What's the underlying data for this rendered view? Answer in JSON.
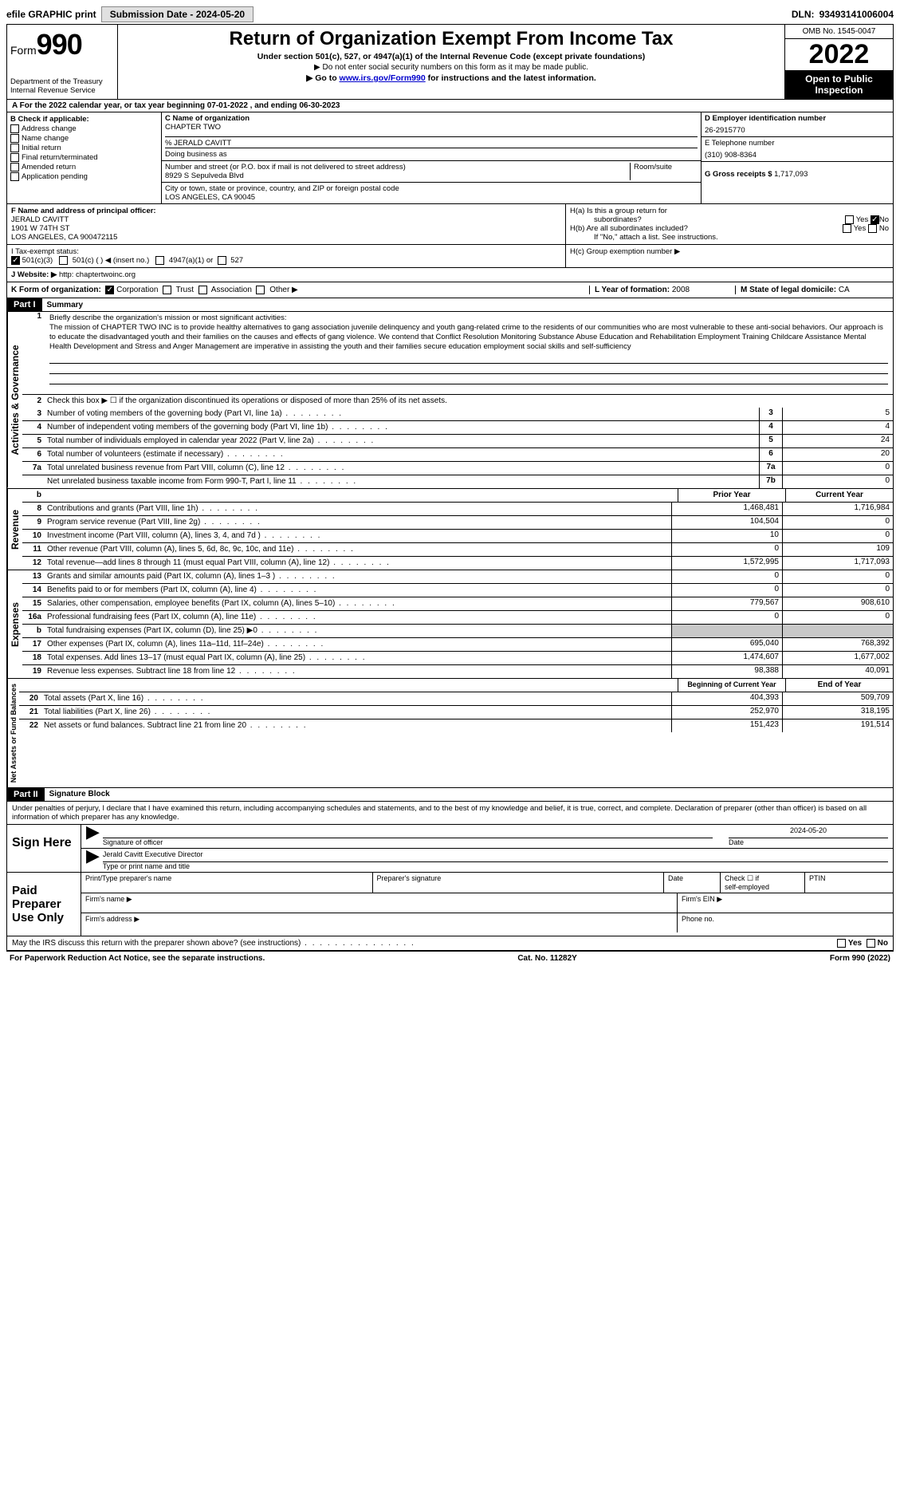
{
  "topbar": {
    "efile": "efile GRAPHIC print",
    "submission_btn": "Submission Date - 2024-05-20",
    "dln_label": "DLN:",
    "dln": "93493141006004"
  },
  "header": {
    "form_prefix": "Form",
    "form_num": "990",
    "dept": "Department of the Treasury",
    "irs": "Internal Revenue Service",
    "title": "Return of Organization Exempt From Income Tax",
    "sub1": "Under section 501(c), 527, or 4947(a)(1) of the Internal Revenue Code (except private foundations)",
    "sub2": "▶ Do not enter social security numbers on this form as it may be made public.",
    "sub3_pre": "▶ Go to ",
    "sub3_link": "www.irs.gov/Form990",
    "sub3_post": " for instructions and the latest information.",
    "omb": "OMB No. 1545-0047",
    "year": "2022",
    "open": "Open to Public Inspection"
  },
  "rowA": "A For the 2022 calendar year, or tax year beginning 07-01-2022   , and ending 06-30-2023",
  "colB": {
    "hdr": "B Check if applicable:",
    "opts": [
      "Address change",
      "Name change",
      "Initial return",
      "Final return/terminated",
      "Amended return",
      "Application pending"
    ]
  },
  "colC": {
    "name_lbl": "C Name of organization",
    "name": "CHAPTER TWO",
    "care_lbl": "% JERALD CAVITT",
    "dba_lbl": "Doing business as",
    "street_lbl": "Number and street (or P.O. box if mail is not delivered to street address)",
    "street": "8929 S Sepulveda Blvd",
    "room_lbl": "Room/suite",
    "city_lbl": "City or town, state or province, country, and ZIP or foreign postal code",
    "city": "LOS ANGELES, CA  90045"
  },
  "colD": {
    "ein_lbl": "D Employer identification number",
    "ein": "26-2915770",
    "phone_lbl": "E Telephone number",
    "phone": "(310) 908-8364",
    "gross_lbl": "G Gross receipts $",
    "gross": "1,717,093"
  },
  "rowF": {
    "lbl": "F  Name and address of principal officer:",
    "name": "JERALD CAVITT",
    "addr1": "1901 W 74TH ST",
    "addr2": "LOS ANGELES, CA  900472115"
  },
  "rowH": {
    "ha": "H(a)  Is this a group return for",
    "ha2": "subordinates?",
    "hb": "H(b)  Are all subordinates included?",
    "hb2": "If \"No,\" attach a list. See instructions.",
    "hc": "H(c)  Group exemption number ▶",
    "yes": "Yes",
    "no": "No"
  },
  "rowI": {
    "lbl": "I    Tax-exempt status:",
    "o1": "501(c)(3)",
    "o2": "501(c) (  ) ◀ (insert no.)",
    "o3": "4947(a)(1) or",
    "o4": "527"
  },
  "rowJ": {
    "lbl": "J   Website: ▶",
    "val": "http: chaptertwoinc.org"
  },
  "rowK": {
    "lbl": "K Form of organization:",
    "o1": "Corporation",
    "o2": "Trust",
    "o3": "Association",
    "o4": "Other ▶",
    "l_lbl": "L Year of formation:",
    "l_val": "2008",
    "m_lbl": "M State of legal domicile:",
    "m_val": "CA"
  },
  "part1": {
    "hdr": "Part I",
    "title": "Summary"
  },
  "section_labels": {
    "ag": "Activities & Governance",
    "rev": "Revenue",
    "exp": "Expenses",
    "nab": "Net Assets or Fund Balances"
  },
  "mission_lbl": "Briefly describe the organization's mission or most significant activities:",
  "mission": "The mission of CHAPTER TWO INC is to provide healthy alternatives to gang association juvenile delinquency and youth gang-related crime to the residents of our communities who are most vulnerable to these anti-social behaviors. Our approach is to educate the disadvantaged youth and their families on the causes and effects of gang violence. We contend that Conflict Resolution Monitoring Substance Abuse Education and Rehabilitation Employment Training Childcare Assistance Mental Health Development and Stress and Anger Management are imperative in assisting the youth and their families secure education employment social skills and self-sufficiency",
  "line2": "Check this box ▶ ☐  if the organization discontinued its operations or disposed of more than 25% of its net assets.",
  "lines_ag": [
    {
      "n": "3",
      "t": "Number of voting members of the governing body (Part VI, line 1a)",
      "box": "3",
      "v": "5"
    },
    {
      "n": "4",
      "t": "Number of independent voting members of the governing body (Part VI, line 1b)",
      "box": "4",
      "v": "4"
    },
    {
      "n": "5",
      "t": "Total number of individuals employed in calendar year 2022 (Part V, line 2a)",
      "box": "5",
      "v": "24"
    },
    {
      "n": "6",
      "t": "Total number of volunteers (estimate if necessary)",
      "box": "6",
      "v": "20"
    },
    {
      "n": "7a",
      "t": "Total unrelated business revenue from Part VIII, column (C), line 12",
      "box": "7a",
      "v": "0"
    },
    {
      "n": "",
      "t": "Net unrelated business taxable income from Form 990-T, Part I, line 11",
      "box": "7b",
      "v": "0"
    }
  ],
  "col_hdrs": {
    "b": "b",
    "prior": "Prior Year",
    "current": "Current Year"
  },
  "lines_rev": [
    {
      "n": "8",
      "t": "Contributions and grants (Part VIII, line 1h)",
      "p": "1,468,481",
      "c": "1,716,984"
    },
    {
      "n": "9",
      "t": "Program service revenue (Part VIII, line 2g)",
      "p": "104,504",
      "c": "0"
    },
    {
      "n": "10",
      "t": "Investment income (Part VIII, column (A), lines 3, 4, and 7d )",
      "p": "10",
      "c": "0"
    },
    {
      "n": "11",
      "t": "Other revenue (Part VIII, column (A), lines 5, 6d, 8c, 9c, 10c, and 11e)",
      "p": "0",
      "c": "109"
    },
    {
      "n": "12",
      "t": "Total revenue—add lines 8 through 11 (must equal Part VIII, column (A), line 12)",
      "p": "1,572,995",
      "c": "1,717,093"
    }
  ],
  "lines_exp": [
    {
      "n": "13",
      "t": "Grants and similar amounts paid (Part IX, column (A), lines 1–3 )",
      "p": "0",
      "c": "0"
    },
    {
      "n": "14",
      "t": "Benefits paid to or for members (Part IX, column (A), line 4)",
      "p": "0",
      "c": "0"
    },
    {
      "n": "15",
      "t": "Salaries, other compensation, employee benefits (Part IX, column (A), lines 5–10)",
      "p": "779,567",
      "c": "908,610"
    },
    {
      "n": "16a",
      "t": "Professional fundraising fees (Part IX, column (A), line 11e)",
      "p": "0",
      "c": "0"
    },
    {
      "n": "b",
      "t": "Total fundraising expenses (Part IX, column (D), line 25) ▶0",
      "p": "",
      "c": "",
      "shade": true
    },
    {
      "n": "17",
      "t": "Other expenses (Part IX, column (A), lines 11a–11d, 11f–24e)",
      "p": "695,040",
      "c": "768,392"
    },
    {
      "n": "18",
      "t": "Total expenses. Add lines 13–17 (must equal Part IX, column (A), line 25)",
      "p": "1,474,607",
      "c": "1,677,002"
    },
    {
      "n": "19",
      "t": "Revenue less expenses. Subtract line 18 from line 12",
      "p": "98,388",
      "c": "40,091"
    }
  ],
  "col_hdrs2": {
    "begin": "Beginning of Current Year",
    "end": "End of Year"
  },
  "lines_nab": [
    {
      "n": "20",
      "t": "Total assets (Part X, line 16)",
      "p": "404,393",
      "c": "509,709"
    },
    {
      "n": "21",
      "t": "Total liabilities (Part X, line 26)",
      "p": "252,970",
      "c": "318,195"
    },
    {
      "n": "22",
      "t": "Net assets or fund balances. Subtract line 21 from line 20",
      "p": "151,423",
      "c": "191,514"
    }
  ],
  "part2": {
    "hdr": "Part II",
    "title": "Signature Block"
  },
  "perjury": "Under penalties of perjury, I declare that I have examined this return, including accompanying schedules and statements, and to the best of my knowledge and belief, it is true, correct, and complete. Declaration of preparer (other than officer) is based on all information of which preparer has any knowledge.",
  "sign": {
    "here": "Sign Here",
    "sig_lbl": "Signature of officer",
    "date_lbl": "Date",
    "date": "2024-05-20",
    "name": "Jerald Cavitt Executive Director",
    "name_lbl": "Type or print name and title"
  },
  "paid": {
    "lbl": "Paid Preparer Use Only",
    "c1": "Print/Type preparer's name",
    "c2": "Preparer's signature",
    "c3": "Date",
    "c4_a": "Check ☐ if",
    "c4_b": "self-employed",
    "c5": "PTIN",
    "firm_name": "Firm's name   ▶",
    "firm_ein": "Firm's EIN ▶",
    "firm_addr": "Firm's address ▶",
    "phone": "Phone no."
  },
  "footer": {
    "discuss": "May the IRS discuss this return with the preparer shown above? (see instructions)",
    "yes": "Yes",
    "no": "No",
    "pra": "For Paperwork Reduction Act Notice, see the separate instructions.",
    "cat": "Cat. No. 11282Y",
    "form": "Form 990 (2022)"
  }
}
